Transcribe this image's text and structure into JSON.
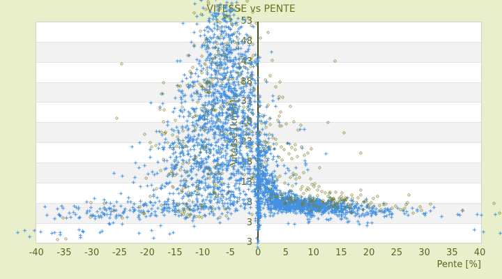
{
  "chart_data": {
    "type": "scatter",
    "title": "VITESSE vs PENTE",
    "xlabel": "Pente [%]",
    "ylabel": "Vitesse [km/h]",
    "x_ticks": [
      -40,
      -35,
      -30,
      -25,
      -20,
      -15,
      -10,
      -5,
      0,
      5,
      10,
      15,
      20,
      25,
      30,
      35,
      40
    ],
    "y_ticks": [
      3,
      8,
      13,
      18,
      23,
      28,
      33,
      38,
      43,
      48,
      53
    ],
    "y_axis_min_label": "3",
    "xlim": [
      -40.2,
      40.4
    ],
    "ylim": [
      -2,
      53
    ],
    "legend": "none",
    "grid": {
      "horizontal_bands": true,
      "vertical_lines": false,
      "zero_line_at_x": 0
    },
    "colors": {
      "background": "#e9efcb",
      "plot_background": "#ffffff",
      "band": "#f2f2f2",
      "band_line": "#e4e4e4",
      "plot_border": "#d2d2d2",
      "text": "#5e631c",
      "title_text": "#6b7022",
      "zero_line": "#474e13",
      "series_blue": "#4591e1",
      "series_olive": "#757a1a"
    },
    "clusters_format": [
      "count",
      "x_center",
      "y_center",
      "x_sigma",
      "y_sigma"
    ],
    "series": [
      {
        "name": "series-blue",
        "marker": "plus",
        "color": "#4591e1",
        "seed": 42,
        "clusters": [
          [
            50,
            -6.8,
            55.5,
            1.6,
            1.8
          ],
          [
            70,
            -6.2,
            50.5,
            2.2,
            2.4
          ],
          [
            100,
            -6.2,
            45.5,
            2.6,
            2.6
          ],
          [
            130,
            -6.3,
            40.5,
            3.2,
            2.8
          ],
          [
            160,
            -6.5,
            35.5,
            3.8,
            2.8
          ],
          [
            185,
            -6.8,
            30.5,
            4.4,
            2.8
          ],
          [
            200,
            -7.0,
            25.5,
            5.0,
            2.8
          ],
          [
            200,
            -7.2,
            20.5,
            5.6,
            2.8
          ],
          [
            195,
            -7.6,
            15.5,
            6.0,
            2.6
          ],
          [
            175,
            -8.2,
            11.0,
            6.6,
            2.2
          ],
          [
            150,
            -13,
            6.8,
            7.5,
            1.4
          ],
          [
            70,
            -27,
            5.8,
            6.0,
            1.1
          ],
          [
            22,
            -27,
            1.2,
            8.0,
            1.1
          ],
          [
            120,
            0,
            9,
            0.22,
            4.5
          ],
          [
            70,
            0.05,
            20,
            0.25,
            5
          ],
          [
            60,
            -1.5,
            22,
            1.2,
            7
          ],
          [
            40,
            -2,
            42,
            1.5,
            4
          ],
          [
            60,
            0.9,
            17,
            0.6,
            4
          ],
          [
            90,
            2,
            10.5,
            0.8,
            2
          ],
          [
            160,
            4,
            8.3,
            1.4,
            1.2
          ],
          [
            260,
            7,
            7.6,
            2.2,
            1.0
          ],
          [
            200,
            10.5,
            7.2,
            2.4,
            0.9
          ],
          [
            110,
            14,
            6.8,
            2.4,
            0.9
          ],
          [
            60,
            17.5,
            6.3,
            2.4,
            0.9
          ],
          [
            25,
            22,
            5.9,
            3.0,
            0.9
          ],
          [
            12,
            30,
            5.5,
            4.5,
            0.8
          ],
          [
            30,
            1.8,
            14,
            1.2,
            3.5
          ],
          [
            20,
            12,
            4.2,
            6.0,
            0.8
          ],
          [
            15,
            -3.5,
            7.5,
            2.0,
            1.5
          ]
        ],
        "points": [
          [
            -43.4,
            0.7
          ],
          [
            -42.2,
            1.2
          ],
          [
            -38.2,
            5.1
          ],
          [
            -36.8,
            4.2
          ],
          [
            -36.8,
            0.8
          ],
          [
            -33.8,
            4.6
          ],
          [
            39,
            1.4
          ],
          [
            40.6,
            0.9
          ],
          [
            42.8,
            5.2
          ],
          [
            43.6,
            0.5
          ],
          [
            40.2,
            5.0
          ],
          [
            36,
            5.3
          ],
          [
            31,
            6.1
          ],
          [
            18,
            3.4
          ],
          [
            20.5,
            3.2
          ],
          [
            6.5,
            2.8
          ],
          [
            9,
            3.1
          ],
          [
            24,
            4.6
          ],
          [
            27,
            5.0
          ]
        ]
      },
      {
        "name": "series-olive",
        "marker": "diamond",
        "color": "#757a1a",
        "seed": 7,
        "clusters": [
          [
            12,
            -6.5,
            56,
            3.0,
            1.8
          ],
          [
            22,
            -5.5,
            50.5,
            3.2,
            2.6
          ],
          [
            30,
            -6,
            45,
            3.6,
            2.8
          ],
          [
            38,
            -7,
            39,
            4.5,
            3.0
          ],
          [
            42,
            -8,
            32,
            5.5,
            3.2
          ],
          [
            45,
            -8.5,
            25,
            6.5,
            3.2
          ],
          [
            42,
            -9,
            18,
            7.0,
            3.0
          ],
          [
            36,
            -10,
            11.5,
            7.5,
            2.4
          ],
          [
            25,
            -16,
            6.5,
            8.0,
            1.3
          ],
          [
            35,
            4,
            22,
            2.5,
            5.5
          ],
          [
            30,
            6,
            12,
            3.0,
            2.2
          ],
          [
            45,
            10,
            9.2,
            3.5,
            1.4
          ],
          [
            30,
            14.5,
            8.6,
            3.5,
            1.3
          ],
          [
            18,
            19,
            7.8,
            3.5,
            1.2
          ],
          [
            10,
            25,
            6.8,
            4.0,
            1.0
          ],
          [
            8,
            0.3,
            30,
            1.5,
            8
          ]
        ],
        "points": [
          [
            -35.2,
            4.4
          ],
          [
            -30.4,
            4.6
          ],
          [
            -30.2,
            8.1
          ],
          [
            -36.3,
            -1.0
          ],
          [
            -34.7,
            -0.9
          ],
          [
            43.5,
            5.6
          ],
          [
            42.5,
            8.0
          ],
          [
            36.8,
            6.3
          ],
          [
            -24.5,
            4.3
          ],
          [
            15.5,
            25.5
          ],
          [
            12.5,
            28
          ],
          [
            18.5,
            20.5
          ],
          [
            9.5,
            21.5
          ],
          [
            13.8,
            43.2
          ],
          [
            2.5,
            43.5
          ]
        ]
      }
    ]
  }
}
